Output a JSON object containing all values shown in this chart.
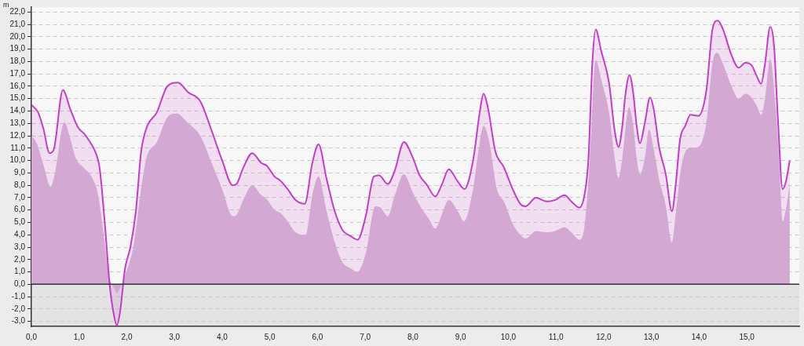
{
  "chart_data": {
    "type": "area",
    "ylabel": "m",
    "xlim": [
      0,
      16.1
    ],
    "ylim": [
      -3.4,
      22.4
    ],
    "xticks": [
      {
        "value": 0,
        "label": "0,0"
      },
      {
        "value": 1,
        "label": "1,0"
      },
      {
        "value": 2,
        "label": "2,0"
      },
      {
        "value": 3,
        "label": "3,0"
      },
      {
        "value": 4,
        "label": "4,0"
      },
      {
        "value": 5,
        "label": "5,0"
      },
      {
        "value": 6,
        "label": "6,0"
      },
      {
        "value": 7,
        "label": "7,0"
      },
      {
        "value": 8,
        "label": "8,0"
      },
      {
        "value": 9,
        "label": "9,0"
      },
      {
        "value": 10,
        "label": "10,0"
      },
      {
        "value": 11,
        "label": "11,0"
      },
      {
        "value": 12,
        "label": "12,0"
      },
      {
        "value": 13,
        "label": "13,0"
      },
      {
        "value": 14,
        "label": "14,0"
      },
      {
        "value": 15,
        "label": "15,0"
      }
    ],
    "yticks": [
      {
        "value": -3,
        "label": "-3,0"
      },
      {
        "value": -2,
        "label": "-2,0"
      },
      {
        "value": -1,
        "label": "-1,0"
      },
      {
        "value": 0,
        "label": "0,0"
      },
      {
        "value": 1,
        "label": "1,0"
      },
      {
        "value": 2,
        "label": "2,0"
      },
      {
        "value": 3,
        "label": "3,0"
      },
      {
        "value": 4,
        "label": "4,0"
      },
      {
        "value": 5,
        "label": "5,0"
      },
      {
        "value": 6,
        "label": "6,0"
      },
      {
        "value": 7,
        "label": "7,0"
      },
      {
        "value": 8,
        "label": "8,0"
      },
      {
        "value": 9,
        "label": "9,0"
      },
      {
        "value": 10,
        "label": "10,0"
      },
      {
        "value": 11,
        "label": "11,0"
      },
      {
        "value": 12,
        "label": "12,0"
      },
      {
        "value": 13,
        "label": "13,0"
      },
      {
        "value": 14,
        "label": "14,0"
      },
      {
        "value": 15,
        "label": "15,0"
      },
      {
        "value": 16,
        "label": "16,0"
      },
      {
        "value": 17,
        "label": "17,0"
      },
      {
        "value": 18,
        "label": "18,0"
      },
      {
        "value": 19,
        "label": "19,0"
      },
      {
        "value": 20,
        "label": "20,0"
      },
      {
        "value": 21,
        "label": "21,0"
      },
      {
        "value": 22,
        "label": "22,0"
      }
    ],
    "grid": "y",
    "legend": false,
    "line_style": "solid",
    "marker": "none",
    "ref_lines": [
      {
        "axis": "y",
        "value": 0,
        "color": "#333333"
      }
    ],
    "bands": [
      {
        "axis": "y",
        "from": -3.4,
        "to": 0,
        "color": "#e3e3e3"
      }
    ],
    "series": [
      {
        "color": "#c13ec6",
        "x": [
          0,
          0.14,
          0.25,
          0.38,
          0.47,
          0.66,
          0.82,
          0.99,
          1.1,
          1.26,
          1.34,
          1.43,
          1.54,
          1.64,
          1.73,
          1.79,
          1.86,
          1.96,
          2.08,
          2.19,
          2.3,
          2.41,
          2.63,
          2.85,
          3.07,
          3.29,
          3.54,
          3.78,
          4.0,
          4.22,
          4.3,
          4.44,
          4.63,
          4.82,
          4.93,
          5.1,
          5.21,
          5.37,
          5.54,
          5.73,
          5.89,
          6.02,
          6.19,
          6.36,
          6.52,
          6.69,
          6.84,
          7.01,
          7.18,
          7.29,
          7.47,
          7.62,
          7.81,
          8.0,
          8.14,
          8.28,
          8.47,
          8.61,
          8.75,
          8.94,
          9.08,
          9.26,
          9.4,
          9.48,
          9.57,
          9.73,
          9.9,
          10.09,
          10.25,
          10.36,
          10.58,
          10.8,
          10.97,
          11.18,
          11.32,
          11.49,
          11.6,
          11.68,
          11.76,
          11.83,
          11.95,
          12.11,
          12.23,
          12.31,
          12.39,
          12.45,
          12.54,
          12.62,
          12.69,
          12.76,
          12.86,
          12.97,
          13.05,
          13.16,
          13.3,
          13.43,
          13.51,
          13.6,
          13.71,
          13.82,
          13.98,
          14.15,
          14.28,
          14.39,
          14.5,
          14.67,
          14.83,
          14.97,
          15.1,
          15.21,
          15.3,
          15.38,
          15.49,
          15.57,
          15.65,
          15.75,
          15.82,
          15.9
        ],
        "values": [
          14.5,
          13.9,
          12.6,
          10.6,
          10.9,
          15.7,
          14.1,
          12.6,
          12.2,
          11.3,
          10.7,
          9.4,
          4.9,
          0,
          -2.5,
          -3.3,
          -2.2,
          1.2,
          3.1,
          5.9,
          10.7,
          12.6,
          13.9,
          16.0,
          16.3,
          15.5,
          14.8,
          12.4,
          10.0,
          8.0,
          8.1,
          9.4,
          10.6,
          9.8,
          9.6,
          8.7,
          8.4,
          7.7,
          6.8,
          6.5,
          9.8,
          11.3,
          8.5,
          5.9,
          4.4,
          3.9,
          3.6,
          5.5,
          8.7,
          8.8,
          8.1,
          9.2,
          11.5,
          10.2,
          8.8,
          8.1,
          7.1,
          8.1,
          9.3,
          8.3,
          7.7,
          10.0,
          13.9,
          15.4,
          14.3,
          10.7,
          9.5,
          7.7,
          6.5,
          6.3,
          7.0,
          6.7,
          6.8,
          7.2,
          6.7,
          6.2,
          7.3,
          10.2,
          17.8,
          20.6,
          18.8,
          16.3,
          12.4,
          11.1,
          12.8,
          15.2,
          16.9,
          15.4,
          12.8,
          11.4,
          13.0,
          15.1,
          14.1,
          11.1,
          8.9,
          5.9,
          8.1,
          11.7,
          12.8,
          13.7,
          13.6,
          15.6,
          20.6,
          21.3,
          20.6,
          18.6,
          17.5,
          17.9,
          17.7,
          16.8,
          16.2,
          17.8,
          20.8,
          19.3,
          13.5,
          7.7,
          8.3,
          10.0
        ]
      },
      {
        "color": "#d3a8d3",
        "x": [
          0,
          0.11,
          0.27,
          0.4,
          0.49,
          0.69,
          0.82,
          0.93,
          1.1,
          1.26,
          1.4,
          1.51,
          1.62,
          1.73,
          1.79,
          1.86,
          1.97,
          2.14,
          2.3,
          2.41,
          2.63,
          2.85,
          3.04,
          3.29,
          3.54,
          3.78,
          4.0,
          4.22,
          4.3,
          4.44,
          4.63,
          4.82,
          4.93,
          5.1,
          5.21,
          5.37,
          5.54,
          5.75,
          5.89,
          6.02,
          6.19,
          6.36,
          6.52,
          6.69,
          6.83,
          7.01,
          7.21,
          7.32,
          7.47,
          7.62,
          7.81,
          8.0,
          8.17,
          8.33,
          8.47,
          8.61,
          8.75,
          8.94,
          9.07,
          9.26,
          9.37,
          9.48,
          9.59,
          9.76,
          9.92,
          10.09,
          10.25,
          10.36,
          10.58,
          10.8,
          10.97,
          11.18,
          11.32,
          11.49,
          11.6,
          11.71,
          11.83,
          11.95,
          12.11,
          12.23,
          12.31,
          12.39,
          12.53,
          12.62,
          12.69,
          12.76,
          12.86,
          12.95,
          13.05,
          13.16,
          13.3,
          13.43,
          13.51,
          13.63,
          13.79,
          13.98,
          14.15,
          14.28,
          14.38,
          14.5,
          14.67,
          14.83,
          14.97,
          15.1,
          15.21,
          15.3,
          15.38,
          15.49,
          15.6,
          15.68,
          15.75,
          15.82,
          15.9
        ],
        "values": [
          12.0,
          11.4,
          9.4,
          7.9,
          8.9,
          13.1,
          11.7,
          10.2,
          9.4,
          8.7,
          7.2,
          4.2,
          0.8,
          -0.3,
          -0.7,
          -0.3,
          0.8,
          3.1,
          7.7,
          10.2,
          11.5,
          13.5,
          13.8,
          13.0,
          12.0,
          9.8,
          7.7,
          5.5,
          5.6,
          6.8,
          8.0,
          7.2,
          6.9,
          6.0,
          5.8,
          5.1,
          4.2,
          4.0,
          7.2,
          8.7,
          5.9,
          3.4,
          1.8,
          1.3,
          1.0,
          2.5,
          6.3,
          6.2,
          5.5,
          7.2,
          8.9,
          7.4,
          6.2,
          5.3,
          4.5,
          5.7,
          6.8,
          5.9,
          5.1,
          7.7,
          10.7,
          12.8,
          11.7,
          7.7,
          6.6,
          4.9,
          4.0,
          3.7,
          4.3,
          4.2,
          4.3,
          4.6,
          4.2,
          3.6,
          4.8,
          10.2,
          18.1,
          16.5,
          13.9,
          10.2,
          8.6,
          10.2,
          14.3,
          12.8,
          10.2,
          8.9,
          10.2,
          12.5,
          10.9,
          8.5,
          6.4,
          3.4,
          5.7,
          9.6,
          11.0,
          11.1,
          13.0,
          17.9,
          18.7,
          17.8,
          16.1,
          15.0,
          15.4,
          15.1,
          14.4,
          13.7,
          15.0,
          18.2,
          14.5,
          9.8,
          5.1,
          6.1,
          8.1
        ]
      }
    ]
  }
}
